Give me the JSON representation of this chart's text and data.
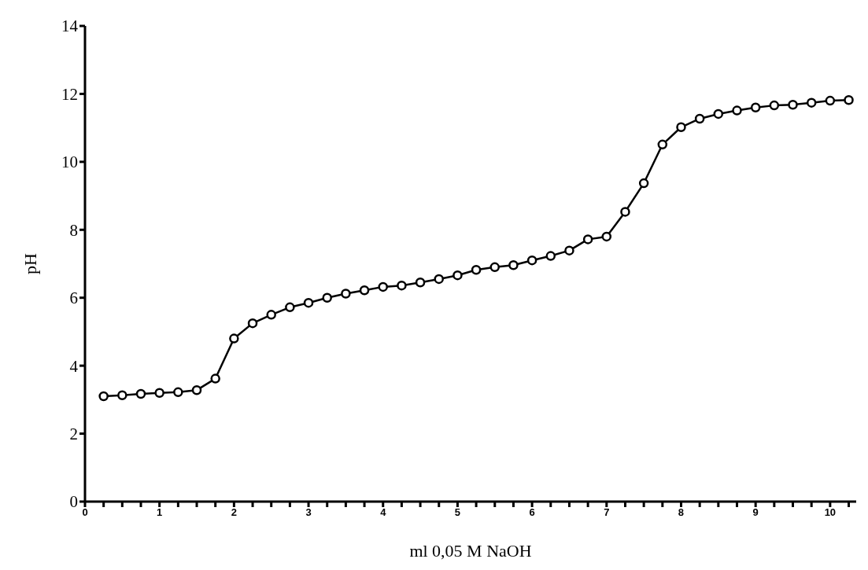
{
  "chart_data": {
    "type": "line",
    "xlabel": "ml 0,05 M NaOH",
    "ylabel": "pH",
    "x": [
      0.25,
      0.5,
      0.75,
      1.0,
      1.25,
      1.5,
      1.75,
      2.0,
      2.25,
      2.5,
      2.75,
      3.0,
      3.25,
      3.5,
      3.75,
      4.0,
      4.25,
      4.5,
      4.75,
      5.0,
      5.25,
      5.5,
      5.75,
      6.0,
      6.25,
      6.5,
      6.75,
      7.0,
      7.25,
      7.5,
      7.75,
      8.0,
      8.25,
      8.5,
      8.75,
      9.0,
      9.25,
      9.5,
      9.75,
      10.0,
      10.25
    ],
    "series": [
      {
        "color": "#000000",
        "values": [
          3.1,
          3.13,
          3.17,
          3.2,
          3.22,
          3.28,
          3.62,
          4.8,
          5.25,
          5.5,
          5.72,
          5.85,
          6.0,
          6.12,
          6.22,
          6.32,
          6.36,
          6.45,
          6.55,
          6.66,
          6.82,
          6.9,
          6.96,
          7.1,
          7.23,
          7.39,
          7.72,
          7.8,
          8.53,
          9.37,
          10.51,
          11.02,
          11.27,
          11.41,
          11.51,
          11.6,
          11.66,
          11.68,
          11.74,
          11.8,
          11.82
        ]
      }
    ],
    "xlim": [
      0,
      10.35
    ],
    "xticks": [
      0,
      {
        "value": 0.25,
        "label": null
      },
      {
        "value": 0.5,
        "label": null
      },
      {
        "value": 0.75,
        "label": null
      },
      1,
      {
        "value": 1.25,
        "label": null
      },
      {
        "value": 1.5,
        "label": null
      },
      {
        "value": 1.75,
        "label": null
      },
      2,
      {
        "value": 2.25,
        "label": null
      },
      {
        "value": 2.5,
        "label": null
      },
      {
        "value": 2.75,
        "label": null
      },
      3,
      {
        "value": 3.25,
        "label": null
      },
      {
        "value": 3.5,
        "label": null
      },
      {
        "value": 3.75,
        "label": null
      },
      4,
      {
        "value": 4.25,
        "label": null
      },
      {
        "value": 4.5,
        "label": null
      },
      {
        "value": 4.75,
        "label": null
      },
      5,
      {
        "value": 5.25,
        "label": null
      },
      {
        "value": 5.5,
        "label": null
      },
      {
        "value": 5.75,
        "label": null
      },
      6,
      {
        "value": 6.25,
        "label": null
      },
      {
        "value": 6.5,
        "label": null
      },
      {
        "value": 6.75,
        "label": null
      },
      7,
      {
        "value": 7.25,
        "label": null
      },
      {
        "value": 7.5,
        "label": null
      },
      {
        "value": 7.75,
        "label": null
      },
      8,
      {
        "value": 8.25,
        "label": null
      },
      {
        "value": 8.5,
        "label": null
      },
      {
        "value": 8.75,
        "label": null
      },
      9,
      {
        "value": 9.25,
        "label": null
      },
      {
        "value": 9.5,
        "label": null
      },
      {
        "value": 9.75,
        "label": null
      },
      10,
      {
        "value": 10.25,
        "label": null
      }
    ],
    "ylim": [
      0,
      14
    ],
    "yticks": [
      0,
      2,
      4,
      6,
      8,
      10,
      12,
      14
    ],
    "marker": "circle",
    "line_style": "solid"
  }
}
